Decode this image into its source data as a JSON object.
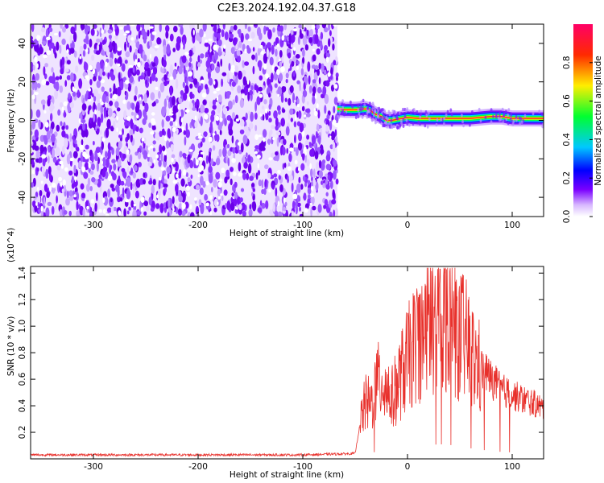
{
  "title": "C2E3.2024.192.04.37.G18",
  "chart_data": [
    {
      "type": "heatmap",
      "xlabel": "Height of straight line (km)",
      "ylabel": "Frequency (Hz)",
      "xlim": [
        -360,
        130
      ],
      "ylim": [
        -50,
        50
      ],
      "x_ticks": [
        -300,
        -200,
        -100,
        0,
        100
      ],
      "y_ticks": [
        -40,
        -20,
        0,
        20,
        40
      ],
      "colorbar": {
        "label": "Normalized spectral amplitude",
        "range": [
          0,
          1
        ],
        "ticks": [
          "0.0",
          "0.2",
          "0.4",
          "0.6",
          "0.8"
        ],
        "colormap": "rainbow (white-purple-blue-cyan-green-yellow-red-magenta)"
      },
      "noise_region_x": [
        -360,
        -67
      ],
      "signal_track": {
        "x": [
          -67,
          -60,
          -50,
          -40,
          -35,
          -30,
          -25,
          -20,
          -15,
          -10,
          -5,
          0,
          10,
          20,
          40,
          60,
          80,
          90,
          100,
          110,
          130
        ],
        "frequency": [
          6,
          5.5,
          5.5,
          6,
          5,
          3,
          2,
          0,
          0,
          0.5,
          1,
          1.5,
          1,
          1,
          1,
          1,
          2,
          2,
          1,
          1,
          1
        ]
      }
    },
    {
      "type": "line",
      "xlabel": "Height of straight line (km)",
      "ylabel": "SNR (10 * v/v)",
      "y_multiplier": "(x10^4)",
      "xlim": [
        -360,
        130
      ],
      "ylim": [
        0,
        14500
      ],
      "x_ticks": [
        -300,
        -200,
        -100,
        0,
        100
      ],
      "y_ticks": [
        "0.2",
        "0.4",
        "0.6",
        "0.8",
        "1.0",
        "1.2",
        "1.4"
      ],
      "series": [
        {
          "x": [
            -360,
            -300,
            -200,
            -100,
            -50,
            -45,
            -40,
            -35,
            -30,
            -25,
            -20,
            -15,
            -10,
            -5,
            0,
            5,
            10,
            15,
            20,
            25,
            30,
            35,
            40,
            45,
            50,
            55,
            60,
            65,
            70,
            75,
            80,
            85,
            90,
            95,
            100,
            110,
            120,
            130
          ],
          "y": [
            300,
            300,
            300,
            300,
            400,
            2800,
            4200,
            4000,
            5500,
            6000,
            5500,
            4500,
            5500,
            6500,
            7500,
            8200,
            9000,
            9500,
            10000,
            10500,
            11000,
            10800,
            10500,
            10000,
            9500,
            9000,
            8000,
            7200,
            6800,
            6500,
            6000,
            5600,
            5200,
            5000,
            4800,
            4500,
            4200,
            3800
          ],
          "color": "#e8302b"
        }
      ]
    }
  ]
}
